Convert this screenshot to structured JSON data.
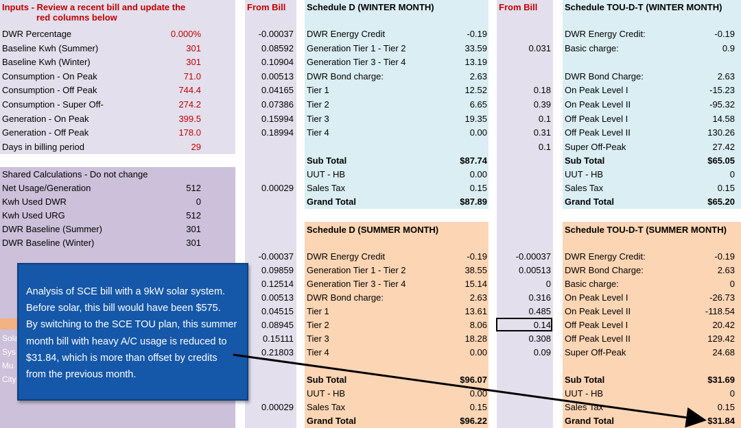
{
  "inputs": {
    "title_line1": "Inputs - Review a recent bill and update the",
    "title_line2": "red columns below",
    "rows": [
      {
        "label": "DWR Percentage",
        "value": "0.000%"
      },
      {
        "label": "Baseline Kwh (Summer)",
        "value": "301"
      },
      {
        "label": "Baseline Kwh (Winter)",
        "value": "301"
      },
      {
        "label": "Consumption - On Peak",
        "value": "71.0"
      },
      {
        "label": "Consumption - Off Peak",
        "value": "744.4"
      },
      {
        "label": "Consumption - Super Off-",
        "value": "274.2"
      },
      {
        "label": "Generation - On Peak",
        "value": "399.5"
      },
      {
        "label": "Generation - Off Peak",
        "value": "178.0"
      },
      {
        "label": "Days in billing period",
        "value": "29"
      }
    ]
  },
  "shared": {
    "title": "Shared Calculations - Do not change",
    "rows": [
      {
        "label": "Net Usage/Generation",
        "value": "512"
      },
      {
        "label": "Kwh Used DWR",
        "value": "0"
      },
      {
        "label": "Kwh Used URG",
        "value": "512"
      },
      {
        "label": "DWR Baseline (Summer)",
        "value": "301"
      },
      {
        "label": "DWR Baseline (Winter)",
        "value": "301"
      }
    ],
    "partial_labels": [
      "Sola",
      "Sys",
      "Mu",
      "City"
    ]
  },
  "from_bill_1": {
    "header": "From Bill",
    "top": [
      "-0.00037",
      "0.08592",
      "0.10904",
      "0.00513",
      "0.04165",
      "0.07386",
      "0.15994",
      "0.18994"
    ],
    "sales_tax": "0.00029",
    "summer": [
      "-0.00037",
      "0.09859",
      "0.12514",
      "0.00513",
      "0.04515",
      "0.08945",
      "0.15111",
      "0.21803"
    ],
    "summer_tax": "0.00029"
  },
  "schedule_d_winter": {
    "header": "Schedule D (WINTER MONTH)",
    "rows": [
      {
        "label": "DWR Energy Credit",
        "value": "-0.19"
      },
      {
        "label": "Generation Tier 1 - Tier 2",
        "value": "33.59"
      },
      {
        "label": "Generation Tier 3 - Tier 4",
        "value": "13.19"
      },
      {
        "label": "DWR Bond charge:",
        "value": "2.63"
      },
      {
        "label": "Tier 1",
        "value": "12.52"
      },
      {
        "label": "Tier 2",
        "value": "6.65"
      },
      {
        "label": "Tier 3",
        "value": "19.35"
      },
      {
        "label": "Tier 4",
        "value": "0.00"
      }
    ],
    "subtotal": {
      "label": "Sub Total",
      "value": "$87.74"
    },
    "uut": {
      "label": "UUT - HB",
      "value": "0.00"
    },
    "tax": {
      "label": "Sales Tax",
      "value": "0.15"
    },
    "grand": {
      "label": "Grand Total",
      "value": "$87.89"
    }
  },
  "schedule_d_summer": {
    "header": "Schedule D (SUMMER MONTH)",
    "rows": [
      {
        "label": "DWR Energy Credit",
        "value": "-0.19"
      },
      {
        "label": "Generation Tier 1 - Tier 2",
        "value": "38.55"
      },
      {
        "label": "Generation Tier 3 - Tier 4",
        "value": "15.14"
      },
      {
        "label": "DWR Bond charge:",
        "value": "2.63"
      },
      {
        "label": "Tier 1",
        "value": "13.61"
      },
      {
        "label": "Tier 2",
        "value": "8.06"
      },
      {
        "label": "Tier 3",
        "value": "18.28"
      },
      {
        "label": "Tier 4",
        "value": "0.00"
      }
    ],
    "subtotal": {
      "label": "Sub Total",
      "value": "$96.07"
    },
    "uut": {
      "label": "UUT - HB",
      "value": "0.00"
    },
    "tax": {
      "label": "Sales Tax",
      "value": "0.15"
    },
    "grand": {
      "label": "Grand Total",
      "value": "$96.22"
    }
  },
  "from_bill_2": {
    "header": "From Bill",
    "winter": [
      "",
      "0.031",
      "",
      "",
      "0.18",
      "0.39",
      "0.1",
      "0.31",
      "0.1"
    ],
    "summer": [
      "-0.00037",
      "0.00513",
      "0",
      "0.316",
      "0.485",
      "0.14",
      "0.308",
      "0.09"
    ]
  },
  "tou_winter": {
    "header": "Schedule TOU-D-T (WINTER MONTH)",
    "rows": [
      {
        "label": "DWR Energy Credit:",
        "value": "-0.19"
      },
      {
        "label": "Basic charge:",
        "value": "0.9"
      },
      {
        "label": "",
        "value": ""
      },
      {
        "label": "DWR Bond Charge:",
        "value": "2.63"
      },
      {
        "label": "On Peak Level I",
        "value": "-15.23"
      },
      {
        "label": "On Peak Level II",
        "value": "-95.32"
      },
      {
        "label": "Off Peak Level I",
        "value": "14.58"
      },
      {
        "label": "Off Peak Level II",
        "value": "130.26"
      },
      {
        "label": "Super Off-Peak",
        "value": "27.42"
      }
    ],
    "subtotal": {
      "label": "Sub Total",
      "value": "$65.05"
    },
    "uut": {
      "label": "UUT - HB",
      "value": "0"
    },
    "tax": {
      "label": "Sales Tax",
      "value": "0.15"
    },
    "grand": {
      "label": "Grand Total",
      "value": "$65.20"
    }
  },
  "tou_summer": {
    "header": "Schedule TOU-D-T (SUMMER MONTH)",
    "rows": [
      {
        "label": "DWR Energy Credit:",
        "value": "-0.19"
      },
      {
        "label": "DWR Bond Charge:",
        "value": "2.63"
      },
      {
        "label": "Basic charge:",
        "value": "0"
      },
      {
        "label": "On Peak Level I",
        "value": "-26.73"
      },
      {
        "label": "On Peak Level II",
        "value": "-118.54"
      },
      {
        "label": "Off Peak Level I",
        "value": "20.42"
      },
      {
        "label": "Off Peak Level II",
        "value": "129.42"
      },
      {
        "label": "Super Off-Peak",
        "value": "24.68"
      }
    ],
    "subtotal": {
      "label": "Sub Total",
      "value": "$31.69"
    },
    "uut": {
      "label": "UUT - HB",
      "value": "0"
    },
    "tax": {
      "label": "Sales Tax",
      "value": "0.15"
    },
    "grand": {
      "label": "Grand Total",
      "value": "$31.84"
    }
  },
  "callout": {
    "lines": [
      "Analysis of SCE bill with a 9kW solar system.",
      "Before solar, this bill would have been $575.",
      "By switching to the SCE TOU plan, this summer",
      "month bill with heavy A/C usage is reduced to",
      "$31.84, which is more than offset by credits",
      "from the previous month."
    ]
  },
  "colors": {
    "inputs_bg": "#e4dfec",
    "shared_bg": "#ccc0da",
    "frombill_bg": "#e4dfec",
    "winter_bg": "#daeef3",
    "summer_bg": "#fcd5b4",
    "callout_bg": "#1557a8",
    "red": "#c00000"
  }
}
